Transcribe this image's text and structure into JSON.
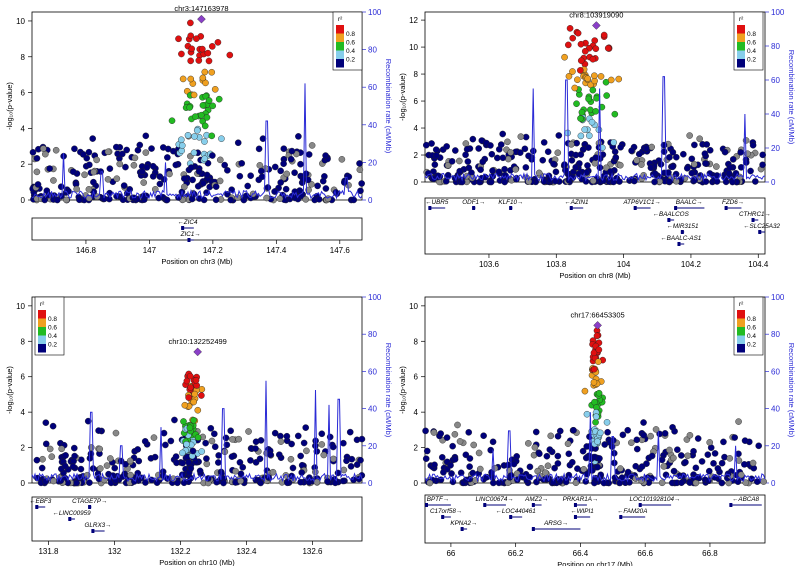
{
  "colors": {
    "ld_bins": [
      "#00007a",
      "#87ceeb",
      "#22bb22",
      "#f0a020",
      "#e01010"
    ],
    "lead": "#8a3fc8",
    "recombination": "#2b2bd6",
    "unknown_ld": "#888888"
  },
  "chart_data": [
    {
      "type": "scatter",
      "snp_label": "chr3:147163978",
      "xlabel": "Position on chr3 (Mb)",
      "ylabel": "-log₁₀(p-value)",
      "y2label": "Recombination rate (cM/Mb)",
      "xlim": [
        146.63,
        147.67
      ],
      "ylim": [
        0,
        10.5
      ],
      "y2lim": [
        0,
        100
      ],
      "xticks": [
        "146.8",
        "147",
        "147.2",
        "147.4",
        "147.6"
      ],
      "yticks": [
        "0",
        "2",
        "4",
        "6",
        "8",
        "10"
      ],
      "y2ticks": [
        "0",
        "20",
        "40",
        "60",
        "80",
        "100"
      ],
      "legend_title": "r²",
      "legend_labels": [
        "0.8",
        "0.6",
        "0.4",
        "0.2"
      ],
      "legend_position": "top-right",
      "lead_snp": {
        "x": 147.164,
        "y": 10.1
      },
      "peak_x": 147.164,
      "peak_y": 9.6,
      "peak_width": 0.06,
      "background_density": 330,
      "recomb_spikes": [
        {
          "x": 146.73,
          "y": 25
        },
        {
          "x": 146.85,
          "y": 15
        },
        {
          "x": 147.05,
          "y": 20
        },
        {
          "x": 147.37,
          "y": 42
        },
        {
          "x": 147.49,
          "y": 62
        },
        {
          "x": 147.62,
          "y": 12
        }
      ],
      "genes": [
        {
          "name": "ZIC4",
          "start": 147.1,
          "end": 147.14,
          "dir": "-",
          "row": 0
        },
        {
          "name": "ZIC1",
          "start": 147.12,
          "end": 147.14,
          "dir": "+",
          "row": 1
        }
      ]
    },
    {
      "type": "scatter",
      "snp_label": "chr8:103919090",
      "xlabel": "Position on chr8 (Mb)",
      "ylabel": "-log₁₀(p-value)",
      "y2label": "Recombination rate (cM/Mb)",
      "xlim": [
        103.41,
        104.42
      ],
      "ylim": [
        0,
        12.6
      ],
      "y2lim": [
        0,
        100
      ],
      "xticks": [
        "103.6",
        "103.8",
        "104",
        "104.2",
        "104.4"
      ],
      "yticks": [
        "0",
        "2",
        "4",
        "6",
        "8",
        "10",
        "12"
      ],
      "y2ticks": [
        "0",
        "20",
        "40",
        "60",
        "80",
        "100"
      ],
      "legend_title": "r²",
      "legend_labels": [
        "0.8",
        "0.6",
        "0.4",
        "0.2"
      ],
      "legend_position": "top-right",
      "lead_snp": {
        "x": 103.919,
        "y": 11.6
      },
      "peak_x": 103.9,
      "peak_y": 11.3,
      "peak_width": 0.07,
      "background_density": 380,
      "recomb_spikes": [
        {
          "x": 103.73,
          "y": 55
        },
        {
          "x": 103.83,
          "y": 60
        },
        {
          "x": 103.93,
          "y": 55
        },
        {
          "x": 104.12,
          "y": 62
        },
        {
          "x": 104.36,
          "y": 40
        }
      ],
      "genes": [
        {
          "name": "UBR5",
          "start": 103.42,
          "end": 103.47,
          "dir": "-",
          "row": 0
        },
        {
          "name": "ODF1",
          "start": 103.55,
          "end": 103.56,
          "dir": "+",
          "row": 0
        },
        {
          "name": "KLF10",
          "start": 103.66,
          "end": 103.67,
          "dir": "+",
          "row": 0
        },
        {
          "name": "AZIN1",
          "start": 103.84,
          "end": 103.88,
          "dir": "-",
          "row": 0
        },
        {
          "name": "ATP6V1C1",
          "start": 104.03,
          "end": 104.08,
          "dir": "+",
          "row": 0
        },
        {
          "name": "BAALC",
          "start": 104.15,
          "end": 104.24,
          "dir": "+",
          "row": 0
        },
        {
          "name": "FZD6",
          "start": 104.3,
          "end": 104.35,
          "dir": "+",
          "row": 0
        },
        {
          "name": "BAALCOS",
          "start": 104.13,
          "end": 104.15,
          "dir": "-",
          "row": 1
        },
        {
          "name": "CTHRC1",
          "start": 104.38,
          "end": 104.4,
          "dir": "+",
          "row": 1
        },
        {
          "name": "MIR3151",
          "start": 104.17,
          "end": 104.18,
          "dir": "-",
          "row": 2
        },
        {
          "name": "SLC25A32",
          "start": 104.4,
          "end": 104.42,
          "dir": "-",
          "row": 2
        },
        {
          "name": "BAALC-AS1",
          "start": 104.16,
          "end": 104.18,
          "dir": "-",
          "row": 3
        }
      ]
    },
    {
      "type": "scatter",
      "snp_label": "chr10:132252499",
      "xlabel": "Position on chr10 (Mb)",
      "ylabel": "-log₁₀(p-value)",
      "y2label": "Recombination rate (cM/Mb)",
      "xlim": [
        131.75,
        132.75
      ],
      "ylim": [
        0,
        10.5
      ],
      "y2lim": [
        0,
        100
      ],
      "xticks": [
        "131.8",
        "132",
        "132.2",
        "132.4",
        "132.6"
      ],
      "yticks": [
        "0",
        "2",
        "4",
        "6",
        "8",
        "10"
      ],
      "y2ticks": [
        "0",
        "20",
        "40",
        "60",
        "80",
        "100"
      ],
      "legend_title": "r²",
      "legend_labels": [
        "0.8",
        "0.6",
        "0.4",
        "0.2"
      ],
      "legend_position": "top-left",
      "lead_snp": {
        "x": 132.252,
        "y": 7.4
      },
      "peak_x": 132.23,
      "peak_y": 6.4,
      "peak_width": 0.03,
      "background_density": 330,
      "recomb_spikes": [
        {
          "x": 131.93,
          "y": 38
        },
        {
          "x": 132.02,
          "y": 20
        },
        {
          "x": 132.14,
          "y": 30
        },
        {
          "x": 132.33,
          "y": 40
        },
        {
          "x": 132.46,
          "y": 55
        },
        {
          "x": 132.61,
          "y": 50
        },
        {
          "x": 132.65,
          "y": 42
        },
        {
          "x": 132.68,
          "y": 45
        }
      ],
      "genes": [
        {
          "name": "EBF3",
          "start": 131.76,
          "end": 131.79,
          "dir": "-",
          "row": 0
        },
        {
          "name": "CTAGE7P",
          "start": 131.92,
          "end": 131.93,
          "dir": "+",
          "row": 0
        },
        {
          "name": "LINC00959",
          "start": 131.86,
          "end": 131.88,
          "dir": "-",
          "row": 1
        },
        {
          "name": "GLRX3",
          "start": 131.93,
          "end": 131.97,
          "dir": "+",
          "row": 2
        }
      ]
    },
    {
      "type": "scatter",
      "snp_label": "chr17:66453305",
      "xlabel": "Position on chr17 (Mb)",
      "ylabel": "-log₁₀(p-value)",
      "y2label": "Recombination rate (cM/Mb)",
      "xlim": [
        65.92,
        66.97
      ],
      "ylim": [
        0,
        10.5
      ],
      "y2lim": [
        0,
        100
      ],
      "xticks": [
        "66",
        "66.2",
        "66.4",
        "66.6",
        "66.8"
      ],
      "yticks": [
        "0",
        "2",
        "4",
        "6",
        "8",
        "10"
      ],
      "y2ticks": [
        "0",
        "20",
        "40",
        "60",
        "80",
        "100"
      ],
      "legend_title": "r²",
      "legend_labels": [
        "0.8",
        "0.6",
        "0.4",
        "0.2"
      ],
      "legend_position": "top-right",
      "lead_snp": {
        "x": 66.453,
        "y": 8.9
      },
      "peak_x": 66.45,
      "peak_y": 8.4,
      "peak_width": 0.02,
      "background_density": 330,
      "recomb_spikes": [
        {
          "x": 66.13,
          "y": 18
        },
        {
          "x": 66.18,
          "y": 28
        },
        {
          "x": 66.43,
          "y": 38
        },
        {
          "x": 66.5,
          "y": 25
        },
        {
          "x": 66.64,
          "y": 28
        },
        {
          "x": 66.88,
          "y": 20
        }
      ],
      "genes": [
        {
          "name": "BPTF",
          "start": 65.92,
          "end": 66.0,
          "dir": "+",
          "row": 0
        },
        {
          "name": "LINC00674",
          "start": 66.1,
          "end": 66.17,
          "dir": "+",
          "row": 0
        },
        {
          "name": "AMZ2",
          "start": 66.25,
          "end": 66.28,
          "dir": "+",
          "row": 0
        },
        {
          "name": "PRKAR1A",
          "start": 66.38,
          "end": 66.42,
          "dir": "+",
          "row": 0
        },
        {
          "name": "LOC101928104",
          "start": 66.58,
          "end": 66.68,
          "dir": "+",
          "row": 0
        },
        {
          "name": "ABCA8",
          "start": 66.86,
          "end": 66.96,
          "dir": "-",
          "row": 0
        },
        {
          "name": "C17orf58",
          "start": 65.97,
          "end": 66.0,
          "dir": "+",
          "row": 1
        },
        {
          "name": "LOC440461",
          "start": 66.18,
          "end": 66.22,
          "dir": "-",
          "row": 1
        },
        {
          "name": "WIPI1",
          "start": 66.38,
          "end": 66.43,
          "dir": "-",
          "row": 1
        },
        {
          "name": "FAM20A",
          "start": 66.52,
          "end": 66.6,
          "dir": "-",
          "row": 1
        },
        {
          "name": "KPNA2",
          "start": 66.03,
          "end": 66.05,
          "dir": "+",
          "row": 2
        },
        {
          "name": "ARSG",
          "start": 66.25,
          "end": 66.4,
          "dir": "+",
          "row": 2
        }
      ]
    }
  ]
}
